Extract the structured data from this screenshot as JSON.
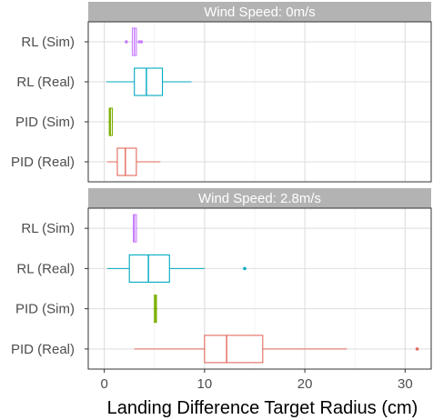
{
  "chart_data": {
    "type": "boxplot",
    "xlabel": "Landing Difference Target Radius (cm)",
    "xlim": [
      -1.6,
      32.6
    ],
    "x_ticks": [
      0,
      10,
      20,
      30
    ],
    "categories": [
      "RL (Sim)",
      "RL (Real)",
      "PID (Sim)",
      "PID (Real)"
    ],
    "category_colors": {
      "RL (Sim)": "#c77cff",
      "RL (Real)": "#00a9c1",
      "PID (Sim)": "#7cae00",
      "PID (Real)": "#e16a5d"
    },
    "grid": true,
    "panels": [
      {
        "strip_label": "Wind Speed: 0m/s",
        "boxes": [
          {
            "category": "RL (Sim)",
            "whisker_low": 2.7,
            "q1": 2.8,
            "median": 3.0,
            "q3": 3.2,
            "whisker_high": 3.3,
            "outliers": [
              2.2,
              3.5,
              3.7
            ]
          },
          {
            "category": "RL (Real)",
            "whisker_low": 0.2,
            "q1": 3.0,
            "median": 4.2,
            "q3": 5.8,
            "whisker_high": 8.7,
            "outliers": []
          },
          {
            "category": "PID (Sim)",
            "whisker_low": 0.4,
            "q1": 0.5,
            "median": 0.6,
            "q3": 0.8,
            "whisker_high": 0.9,
            "outliers": []
          },
          {
            "category": "PID (Real)",
            "whisker_low": 0.3,
            "q1": 1.3,
            "median": 2.1,
            "q3": 3.2,
            "whisker_high": 5.6,
            "outliers": []
          }
        ]
      },
      {
        "strip_label": "Wind Speed: 2.8m/s",
        "boxes": [
          {
            "category": "RL (Sim)",
            "whisker_low": 2.8,
            "q1": 2.9,
            "median": 3.0,
            "q3": 3.2,
            "whisker_high": 3.3,
            "outliers": []
          },
          {
            "category": "RL (Real)",
            "whisker_low": 0.3,
            "q1": 2.5,
            "median": 4.4,
            "q3": 6.5,
            "whisker_high": 10.0,
            "outliers": [
              14.0
            ]
          },
          {
            "category": "PID (Sim)",
            "whisker_low": 4.9,
            "q1": 5.0,
            "median": 5.1,
            "q3": 5.2,
            "whisker_high": 5.3,
            "outliers": []
          },
          {
            "category": "PID (Real)",
            "whisker_low": 3.0,
            "q1": 10.0,
            "median": 12.2,
            "q3": 15.8,
            "whisker_high": 24.2,
            "outliers": [
              31.2
            ]
          }
        ]
      }
    ]
  }
}
